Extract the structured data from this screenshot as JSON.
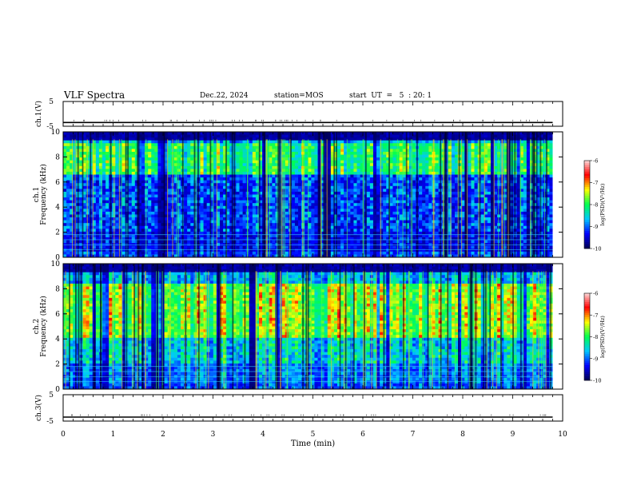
{
  "header": {
    "title": "VLF Spectra",
    "date": "Dec.22, 2024",
    "station": "station=MOS",
    "start": "start  UT  =   5  : 20: 1"
  },
  "chart_data": [
    {
      "type": "line",
      "panel": "ch1-waveform",
      "ylabel": "ch.1(V)",
      "ylim": [
        -5,
        5
      ],
      "yticks": [
        "5",
        "-5"
      ],
      "series": [
        {
          "name": "",
          "x": [
            0,
            9.8
          ],
          "y": [
            -3.5,
            -3.5
          ]
        }
      ]
    },
    {
      "type": "heatmap",
      "panel": "ch1-spectrogram",
      "ylabel": "ch.1\nFrequency (kHz)",
      "ylim": [
        0,
        10
      ],
      "yticks": [
        "0",
        "2",
        "4",
        "6",
        "8",
        "10"
      ],
      "xlim": [
        0,
        10
      ],
      "data_end_min": 9.8,
      "dense_band_khz": [
        6.5,
        9.0
      ],
      "lowfreq_band_khz": [
        0.5,
        2.0
      ],
      "colorbar": {
        "label": "log(PSD)(V²/Hz)",
        "range": [
          -10,
          -6
        ],
        "ticks": [
          "-6",
          "-7",
          "-8",
          "-9",
          "-10"
        ]
      }
    },
    {
      "type": "heatmap",
      "panel": "ch2-spectrogram",
      "ylabel": "ch.2\nFrequency (kHz)",
      "ylim": [
        0,
        10
      ],
      "yticks": [
        "0",
        "2",
        "4",
        "6",
        "8",
        "10"
      ],
      "xlim": [
        0,
        10
      ],
      "data_end_min": 9.8,
      "dense_band_khz": [
        4.0,
        8.5
      ],
      "lowfreq_band_khz": [
        0.5,
        2.0
      ],
      "colorbar": {
        "label": "log(PSD)(V²/Hz)",
        "range": [
          -10,
          -6
        ],
        "ticks": [
          "-6",
          "-7",
          "-8",
          "-9",
          "-10"
        ]
      }
    },
    {
      "type": "line",
      "panel": "ch3-waveform",
      "ylabel": "ch.3(V)",
      "ylim": [
        -5,
        5
      ],
      "yticks": [
        "5",
        "-5"
      ],
      "xlabel": "Time (min)",
      "xlim": [
        0,
        10
      ],
      "xticks": [
        "0",
        "1",
        "2",
        "3",
        "4",
        "5",
        "6",
        "7",
        "8",
        "9",
        "10"
      ],
      "series": [
        {
          "name": "",
          "x": [
            0,
            9.8
          ],
          "y": [
            -3.5,
            -3.5
          ]
        }
      ]
    }
  ],
  "colors": {
    "colormap": [
      "#000050",
      "#0000ff",
      "#00c8ff",
      "#00ff50",
      "#ffff00",
      "#ff0000",
      "#ffdcdc"
    ],
    "axis": "#000000",
    "background": "#ffffff"
  }
}
